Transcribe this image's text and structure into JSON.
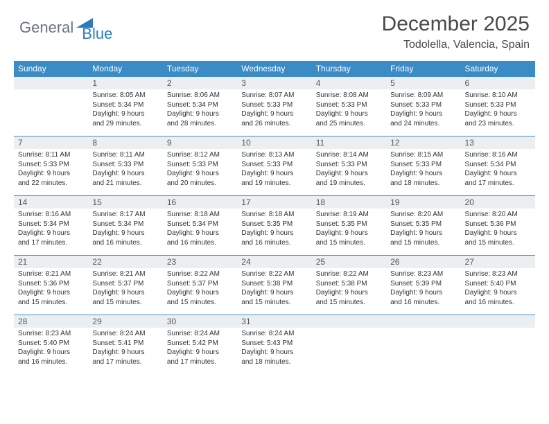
{
  "logo": {
    "part1": "General",
    "part2": "Blue"
  },
  "title": "December 2025",
  "location": "Todolella, Valencia, Spain",
  "header_bg": "#3b8bc6",
  "daynum_bg": "#eceff1",
  "border_color": "#3b8bc6",
  "day_names": [
    "Sunday",
    "Monday",
    "Tuesday",
    "Wednesday",
    "Thursday",
    "Friday",
    "Saturday"
  ],
  "weeks": [
    [
      null,
      {
        "n": "1",
        "sr": "Sunrise: 8:05 AM",
        "ss": "Sunset: 5:34 PM",
        "d1": "Daylight: 9 hours",
        "d2": "and 29 minutes."
      },
      {
        "n": "2",
        "sr": "Sunrise: 8:06 AM",
        "ss": "Sunset: 5:34 PM",
        "d1": "Daylight: 9 hours",
        "d2": "and 28 minutes."
      },
      {
        "n": "3",
        "sr": "Sunrise: 8:07 AM",
        "ss": "Sunset: 5:33 PM",
        "d1": "Daylight: 9 hours",
        "d2": "and 26 minutes."
      },
      {
        "n": "4",
        "sr": "Sunrise: 8:08 AM",
        "ss": "Sunset: 5:33 PM",
        "d1": "Daylight: 9 hours",
        "d2": "and 25 minutes."
      },
      {
        "n": "5",
        "sr": "Sunrise: 8:09 AM",
        "ss": "Sunset: 5:33 PM",
        "d1": "Daylight: 9 hours",
        "d2": "and 24 minutes."
      },
      {
        "n": "6",
        "sr": "Sunrise: 8:10 AM",
        "ss": "Sunset: 5:33 PM",
        "d1": "Daylight: 9 hours",
        "d2": "and 23 minutes."
      }
    ],
    [
      {
        "n": "7",
        "sr": "Sunrise: 8:11 AM",
        "ss": "Sunset: 5:33 PM",
        "d1": "Daylight: 9 hours",
        "d2": "and 22 minutes."
      },
      {
        "n": "8",
        "sr": "Sunrise: 8:11 AM",
        "ss": "Sunset: 5:33 PM",
        "d1": "Daylight: 9 hours",
        "d2": "and 21 minutes."
      },
      {
        "n": "9",
        "sr": "Sunrise: 8:12 AM",
        "ss": "Sunset: 5:33 PM",
        "d1": "Daylight: 9 hours",
        "d2": "and 20 minutes."
      },
      {
        "n": "10",
        "sr": "Sunrise: 8:13 AM",
        "ss": "Sunset: 5:33 PM",
        "d1": "Daylight: 9 hours",
        "d2": "and 19 minutes."
      },
      {
        "n": "11",
        "sr": "Sunrise: 8:14 AM",
        "ss": "Sunset: 5:33 PM",
        "d1": "Daylight: 9 hours",
        "d2": "and 19 minutes."
      },
      {
        "n": "12",
        "sr": "Sunrise: 8:15 AM",
        "ss": "Sunset: 5:33 PM",
        "d1": "Daylight: 9 hours",
        "d2": "and 18 minutes."
      },
      {
        "n": "13",
        "sr": "Sunrise: 8:16 AM",
        "ss": "Sunset: 5:34 PM",
        "d1": "Daylight: 9 hours",
        "d2": "and 17 minutes."
      }
    ],
    [
      {
        "n": "14",
        "sr": "Sunrise: 8:16 AM",
        "ss": "Sunset: 5:34 PM",
        "d1": "Daylight: 9 hours",
        "d2": "and 17 minutes."
      },
      {
        "n": "15",
        "sr": "Sunrise: 8:17 AM",
        "ss": "Sunset: 5:34 PM",
        "d1": "Daylight: 9 hours",
        "d2": "and 16 minutes."
      },
      {
        "n": "16",
        "sr": "Sunrise: 8:18 AM",
        "ss": "Sunset: 5:34 PM",
        "d1": "Daylight: 9 hours",
        "d2": "and 16 minutes."
      },
      {
        "n": "17",
        "sr": "Sunrise: 8:18 AM",
        "ss": "Sunset: 5:35 PM",
        "d1": "Daylight: 9 hours",
        "d2": "and 16 minutes."
      },
      {
        "n": "18",
        "sr": "Sunrise: 8:19 AM",
        "ss": "Sunset: 5:35 PM",
        "d1": "Daylight: 9 hours",
        "d2": "and 15 minutes."
      },
      {
        "n": "19",
        "sr": "Sunrise: 8:20 AM",
        "ss": "Sunset: 5:35 PM",
        "d1": "Daylight: 9 hours",
        "d2": "and 15 minutes."
      },
      {
        "n": "20",
        "sr": "Sunrise: 8:20 AM",
        "ss": "Sunset: 5:36 PM",
        "d1": "Daylight: 9 hours",
        "d2": "and 15 minutes."
      }
    ],
    [
      {
        "n": "21",
        "sr": "Sunrise: 8:21 AM",
        "ss": "Sunset: 5:36 PM",
        "d1": "Daylight: 9 hours",
        "d2": "and 15 minutes."
      },
      {
        "n": "22",
        "sr": "Sunrise: 8:21 AM",
        "ss": "Sunset: 5:37 PM",
        "d1": "Daylight: 9 hours",
        "d2": "and 15 minutes."
      },
      {
        "n": "23",
        "sr": "Sunrise: 8:22 AM",
        "ss": "Sunset: 5:37 PM",
        "d1": "Daylight: 9 hours",
        "d2": "and 15 minutes."
      },
      {
        "n": "24",
        "sr": "Sunrise: 8:22 AM",
        "ss": "Sunset: 5:38 PM",
        "d1": "Daylight: 9 hours",
        "d2": "and 15 minutes."
      },
      {
        "n": "25",
        "sr": "Sunrise: 8:22 AM",
        "ss": "Sunset: 5:38 PM",
        "d1": "Daylight: 9 hours",
        "d2": "and 15 minutes."
      },
      {
        "n": "26",
        "sr": "Sunrise: 8:23 AM",
        "ss": "Sunset: 5:39 PM",
        "d1": "Daylight: 9 hours",
        "d2": "and 16 minutes."
      },
      {
        "n": "27",
        "sr": "Sunrise: 8:23 AM",
        "ss": "Sunset: 5:40 PM",
        "d1": "Daylight: 9 hours",
        "d2": "and 16 minutes."
      }
    ],
    [
      {
        "n": "28",
        "sr": "Sunrise: 8:23 AM",
        "ss": "Sunset: 5:40 PM",
        "d1": "Daylight: 9 hours",
        "d2": "and 16 minutes."
      },
      {
        "n": "29",
        "sr": "Sunrise: 8:24 AM",
        "ss": "Sunset: 5:41 PM",
        "d1": "Daylight: 9 hours",
        "d2": "and 17 minutes."
      },
      {
        "n": "30",
        "sr": "Sunrise: 8:24 AM",
        "ss": "Sunset: 5:42 PM",
        "d1": "Daylight: 9 hours",
        "d2": "and 17 minutes."
      },
      {
        "n": "31",
        "sr": "Sunrise: 8:24 AM",
        "ss": "Sunset: 5:43 PM",
        "d1": "Daylight: 9 hours",
        "d2": "and 18 minutes."
      },
      null,
      null,
      null
    ]
  ]
}
